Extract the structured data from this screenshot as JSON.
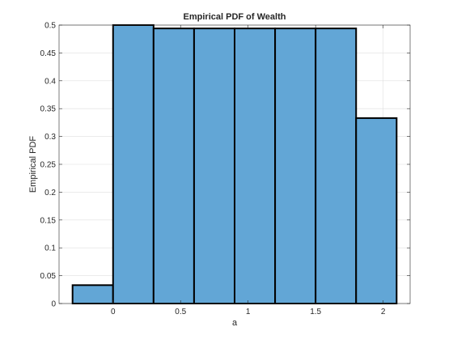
{
  "chart_data": {
    "type": "bar",
    "title": "Empirical PDF of Wealth",
    "xlabel": "a",
    "ylabel": "Empirical PDF",
    "xlim": [
      -0.4,
      2.2
    ],
    "ylim": [
      0,
      0.5
    ],
    "grid": true,
    "xticks": [
      0,
      0.5,
      1,
      1.5,
      2
    ],
    "xtick_labels": [
      "0",
      "0.5",
      "1",
      "1.5",
      "2"
    ],
    "yticks": [
      0,
      0.05,
      0.1,
      0.15,
      0.2,
      0.25,
      0.3,
      0.35,
      0.4,
      0.45,
      0.5
    ],
    "ytick_labels": [
      "0",
      "0.05",
      "0.1",
      "0.15",
      "0.2",
      "0.25",
      "0.3",
      "0.35",
      "0.4",
      "0.45",
      "0.5"
    ],
    "bin_edges": [
      -0.3,
      0.0,
      0.3,
      0.6,
      0.9,
      1.2,
      1.5,
      1.8,
      2.1
    ],
    "values": [
      0.033,
      0.5,
      0.494,
      0.494,
      0.494,
      0.494,
      0.494,
      0.333
    ],
    "bar_color": "#62a6d6",
    "edge_color": "#000000"
  }
}
